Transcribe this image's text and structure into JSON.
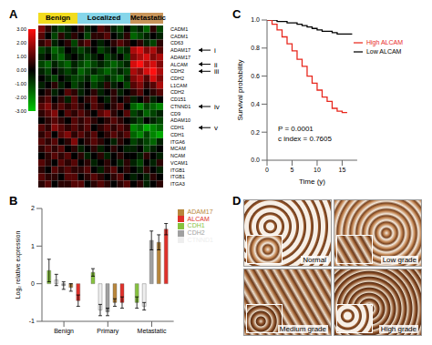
{
  "chart_data": [
    {
      "type": "heatmap",
      "panel": "A",
      "tick_labels": "y",
      "groups": [
        {
          "label": "Benign",
          "count": 6,
          "color": "#f2dc1e"
        },
        {
          "label": "Localized",
          "count": 8,
          "color": "#86d6ea"
        },
        {
          "label": "Metastatic",
          "count": 5,
          "color": "#c8955a"
        }
      ],
      "rows": [
        "CADM1",
        "CADM1",
        "CD63",
        "ADAM17",
        "ADAM17",
        "ALCAM",
        "CDH2",
        "CDH2",
        "L1CAM",
        "CDH2",
        "CD151",
        "CTNND1",
        "CD9",
        "ADAM10",
        "CDH1",
        "CDH1",
        "ITGA6",
        "MCAM",
        "NCAM",
        "VCAM1",
        "ITGB1",
        "ITGB1",
        "ITGA3"
      ],
      "cells": [
        [
          1.5,
          0.5,
          -0.5,
          -1,
          -0.5,
          0,
          0.5,
          -0.5,
          0,
          1,
          0.5,
          -0.5,
          -1,
          0,
          -1,
          -0.5,
          -1.5,
          0.5,
          -1
        ],
        [
          1,
          0,
          -1,
          0.5,
          -0.5,
          0.5,
          0,
          -1,
          0.5,
          0.5,
          1,
          0,
          -0.5,
          0.5,
          -1.5,
          -1,
          -0.5,
          0,
          -0.5
        ],
        [
          0.5,
          1,
          -0.5,
          0,
          0.5,
          -1,
          0.5,
          1,
          0,
          -0.5,
          0,
          0.5,
          1,
          0.5,
          0,
          0.5,
          -0.5,
          -1,
          0.5
        ],
        [
          -1,
          -0.5,
          -1.5,
          -1,
          0,
          -0.5,
          -1,
          -0.5,
          0,
          -1,
          -0.5,
          0,
          -1,
          -0.5,
          2,
          2.5,
          1.5,
          2,
          1
        ],
        [
          -0.5,
          0,
          -1,
          -1.5,
          -0.5,
          0,
          -0.5,
          -1,
          -0.5,
          0,
          -1,
          -0.5,
          0,
          -1,
          1.5,
          2,
          2.5,
          1.5,
          2
        ],
        [
          -1,
          -1.5,
          -0.5,
          -1,
          -1.5,
          -0.5,
          -1,
          -1.5,
          -1,
          -0.5,
          -1,
          -1.5,
          -1,
          -0.5,
          2.5,
          3,
          2,
          2.5,
          1.5
        ],
        [
          -0.5,
          -1,
          0,
          -0.5,
          -1,
          -0.5,
          -1.5,
          -1,
          -0.5,
          -1,
          -1.5,
          -1,
          -0.5,
          -1,
          2,
          1.5,
          2.5,
          3,
          2
        ],
        [
          0,
          -0.5,
          -1,
          0,
          -0.5,
          -1,
          -1,
          -0.5,
          -1.5,
          -1,
          -0.5,
          -1,
          -1.5,
          -0.5,
          1.5,
          2,
          1,
          2.5,
          1.5
        ],
        [
          -0.5,
          0,
          0.5,
          -0.5,
          0,
          -1,
          -0.5,
          0,
          -1,
          -0.5,
          0.5,
          -0.5,
          0,
          -1,
          1,
          1.5,
          0.5,
          1,
          2
        ],
        [
          0,
          0.5,
          -0.5,
          0,
          1,
          0.5,
          -0.5,
          0,
          0.5,
          -0.5,
          0,
          0.5,
          -0.5,
          0,
          0.5,
          1,
          0,
          0.5,
          1
        ],
        [
          0.5,
          1,
          0,
          0.5,
          -0.5,
          1,
          0,
          0.5,
          1,
          0,
          -0.5,
          0.5,
          0,
          0.5,
          -0.5,
          0,
          0.5,
          -0.5,
          0
        ],
        [
          1,
          1.5,
          0.5,
          1,
          0.5,
          1,
          0.5,
          0,
          1,
          0.5,
          0,
          0.5,
          1,
          0,
          -1.5,
          -2,
          -1,
          -1.5,
          -2
        ],
        [
          0.5,
          1,
          1.5,
          0,
          1,
          0.5,
          1,
          0.5,
          0,
          1,
          1.5,
          0.5,
          0,
          1,
          -1,
          -0.5,
          -1.5,
          -1,
          -0.5
        ],
        [
          0,
          0.5,
          1,
          0.5,
          0,
          1,
          0.5,
          1,
          0.5,
          0,
          0.5,
          1,
          0.5,
          0,
          -0.5,
          -1,
          0,
          -0.5,
          -1
        ],
        [
          1,
          0.5,
          1.5,
          1,
          0.5,
          1,
          0.5,
          1,
          0,
          0.5,
          1,
          0.5,
          1,
          0.5,
          -2,
          -1.5,
          -2.5,
          -2,
          -1.5
        ],
        [
          0.5,
          1,
          0,
          1,
          1.5,
          0.5,
          1,
          0.5,
          1,
          0,
          0.5,
          1,
          0.5,
          1,
          -1.5,
          -2,
          -1,
          -2,
          -2.5
        ],
        [
          1,
          0.5,
          1,
          0,
          0.5,
          1.5,
          0,
          0.5,
          1,
          0.5,
          0,
          -0.5,
          0.5,
          0,
          -1,
          -0.5,
          -1,
          -1.5,
          -0.5
        ],
        [
          0.5,
          1,
          0.5,
          1,
          0,
          0.5,
          -0.5,
          0,
          0.5,
          -0.5,
          0,
          0.5,
          0,
          -0.5,
          -0.5,
          0,
          -1,
          -0.5,
          0
        ],
        [
          0,
          0.5,
          1,
          0.5,
          1,
          0,
          0.5,
          -0.5,
          0,
          0.5,
          -0.5,
          0,
          0.5,
          0,
          0,
          -0.5,
          0.5,
          0,
          -0.5
        ],
        [
          1,
          0.5,
          0,
          1,
          0.5,
          1,
          0,
          0.5,
          -0.5,
          0,
          0.5,
          0,
          -0.5,
          0.5,
          -0.5,
          -1,
          0,
          -0.5,
          0.5
        ],
        [
          0.5,
          0,
          1,
          0.5,
          1,
          0.5,
          0.5,
          1,
          0,
          -0.5,
          0.5,
          1,
          0,
          0.5,
          0,
          -0.5,
          0.5,
          0,
          -0.5
        ],
        [
          1,
          0.5,
          0.5,
          0,
          1,
          1,
          0,
          0.5,
          1,
          0.5,
          0,
          0.5,
          1,
          0,
          -0.5,
          0,
          -0.5,
          0.5,
          0
        ],
        [
          0.5,
          1,
          0,
          0.5,
          0.5,
          1,
          1,
          0,
          0.5,
          1,
          0.5,
          0,
          0.5,
          1,
          0,
          0.5,
          -0.5,
          0,
          0.5
        ]
      ],
      "colorbar": {
        "range": [
          -3,
          3
        ],
        "colors": [
          "#00c800",
          "#000000",
          "#ff1010"
        ],
        "ticks": [
          {
            "value": 3,
            "label": "3.00"
          },
          {
            "value": 2,
            "label": "2.00"
          },
          {
            "value": 1,
            "label": "1.00"
          },
          {
            "value": 0,
            "label": "0.00"
          },
          {
            "value": -1,
            "label": "-1.00"
          },
          {
            "value": -2,
            "label": "-2.00"
          },
          {
            "value": -3,
            "label": "-3.00"
          }
        ]
      },
      "markers": [
        {
          "row": 3,
          "label": "i"
        },
        {
          "row": 5,
          "label": "ii"
        },
        {
          "row": 6,
          "label": "iii"
        },
        {
          "row": 11,
          "label": "iv"
        },
        {
          "row": 14,
          "label": "v"
        }
      ]
    },
    {
      "type": "bar",
      "panel": "B",
      "y_label": "Log₂ relative expression",
      "categories": [
        "Benign",
        "Primary",
        "Metastatic"
      ],
      "series": [
        {
          "name": "CDH1",
          "color": "#86c23e",
          "values": [
            0.35,
            0.3,
            -0.5
          ],
          "errors": [
            0.3,
            0.1,
            0.15
          ]
        },
        {
          "name": "CTNND1",
          "color": "#eeeeee",
          "values": [
            0.1,
            -0.7,
            -0.6
          ],
          "errors": [
            0.15,
            0.15,
            0.1
          ]
        },
        {
          "name": "CDH2",
          "color": "#a0a0a0",
          "values": [
            -0.05,
            -0.75,
            1.15
          ],
          "errors": [
            0.1,
            0.1,
            0.25
          ]
        },
        {
          "name": "ADAM17",
          "color": "#b8863b",
          "values": [
            -0.1,
            -0.5,
            1.1
          ],
          "errors": [
            0.1,
            0.1,
            0.2
          ]
        },
        {
          "name": "ALCAM",
          "color": "#e0302a",
          "values": [
            -0.45,
            -0.5,
            1.45
          ],
          "errors": [
            0.15,
            0.15,
            0.15
          ]
        }
      ],
      "ylim": [
        -1,
        2
      ],
      "yticks": [
        -1,
        0,
        1,
        2
      ],
      "legend": "right"
    },
    {
      "type": "line",
      "panel": "C",
      "x_label": "Time (y)",
      "y_label": "Survival probability",
      "x": [
        0,
        1,
        2,
        3,
        4,
        5,
        6,
        7,
        8,
        9,
        10,
        11,
        12,
        13,
        14,
        15,
        16,
        17
      ],
      "series": [
        {
          "name": "Low ALCAM",
          "color": "#000000",
          "line_style": "step",
          "values": [
            1,
            1,
            0.99,
            0.99,
            0.98,
            0.98,
            0.97,
            0.96,
            0.95,
            0.94,
            0.93,
            0.92,
            0.92,
            0.91,
            0.9,
            0.9,
            0.9,
            0.9
          ]
        },
        {
          "name": "High ALCAM",
          "color": "#e8281e",
          "line_style": "step",
          "values": [
            1,
            0.97,
            0.93,
            0.88,
            0.83,
            0.78,
            0.72,
            0.67,
            0.6,
            0.55,
            0.5,
            0.45,
            0.42,
            0.37,
            0.35,
            0.34,
            0.34,
            null
          ]
        }
      ],
      "xlim": [
        0,
        18
      ],
      "xticks": [
        0,
        5,
        10,
        15
      ],
      "ylim": [
        0,
        1
      ],
      "yticks": [
        {
          "value": 0,
          "label": "0.0"
        },
        {
          "value": 0.2,
          "label": "0.2"
        },
        {
          "value": 0.4,
          "label": "0.4"
        },
        {
          "value": 0.6,
          "label": "0.6"
        },
        {
          "value": 0.8,
          "label": "0.8"
        },
        {
          "value": 1,
          "label": "1.0"
        }
      ],
      "legend": "upper right",
      "annotations": [
        "P = 0.0001",
        "c index = 0.7605"
      ]
    },
    {
      "type": "image_grid",
      "panel": "D",
      "labels": [
        "Normal",
        "Low grade",
        "Medium grade",
        "High grade"
      ]
    }
  ]
}
